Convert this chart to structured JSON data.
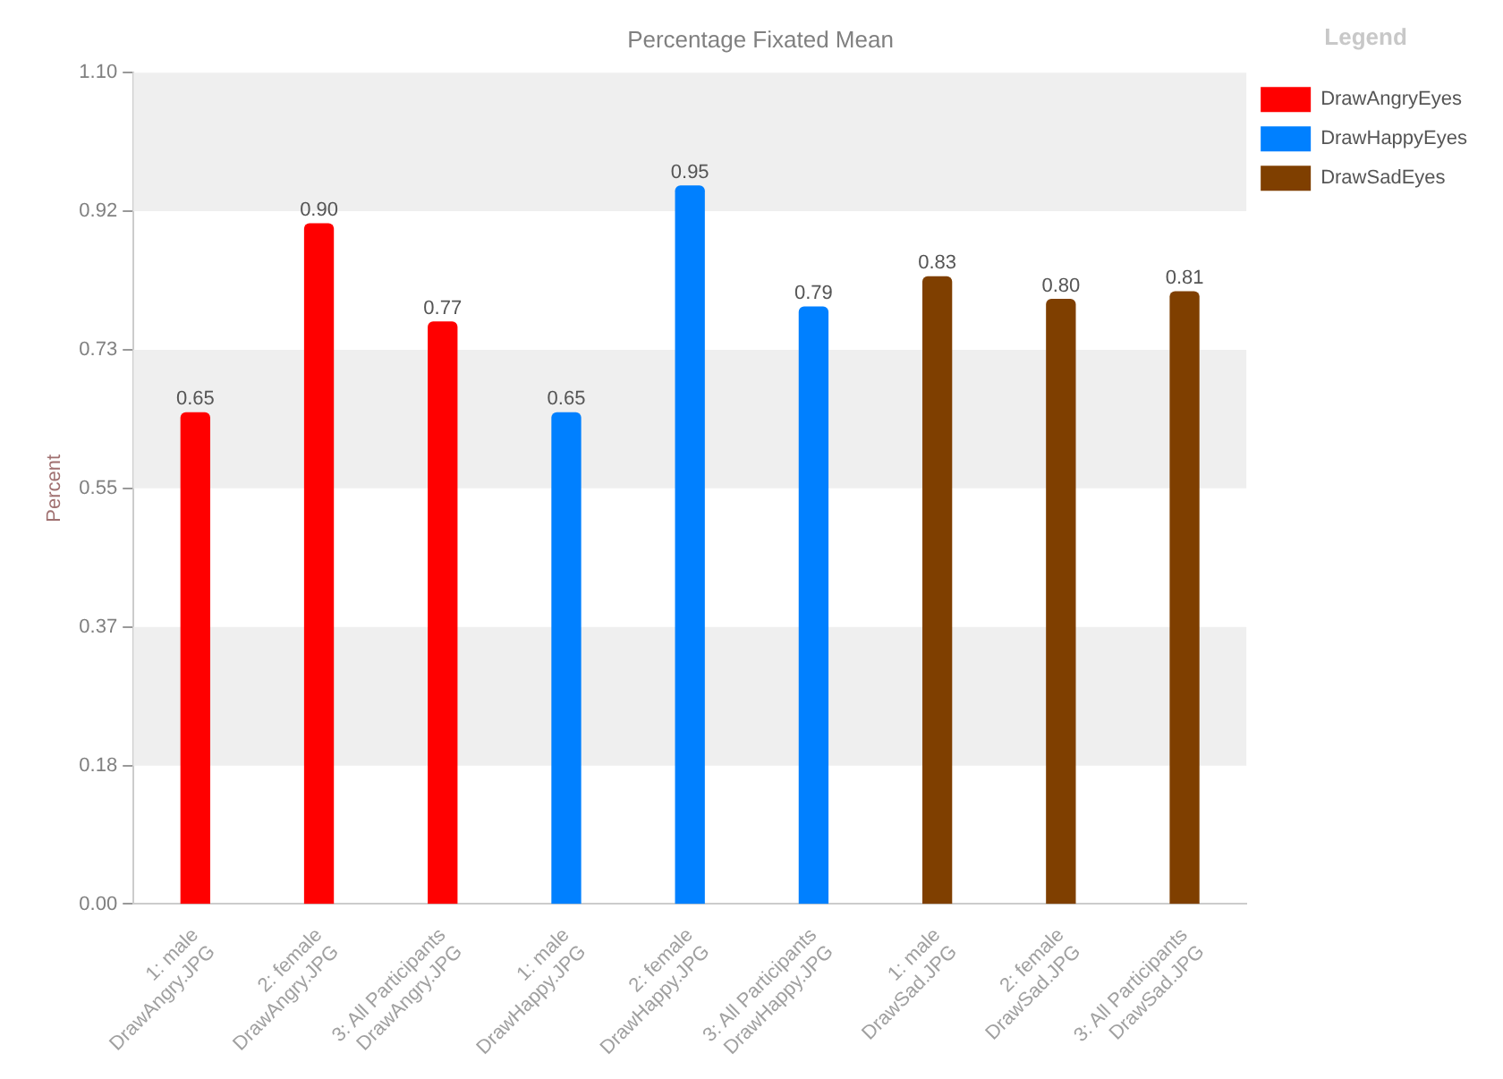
{
  "chart_data": {
    "type": "bar",
    "title": "Percentage Fixated Mean",
    "ylabel": "Percent",
    "legend_title": "Legend",
    "categories": [
      "1: male\nDrawAngry.JPG",
      "2: female\nDrawAngry.JPG",
      "3: All Participants\nDrawAngry.JPG",
      "1: male\nDrawHappy.JPG",
      "2: female\nDrawHappy.JPG",
      "3: All Participants\nDrawHappy.JPG",
      "1: male\nDrawSad.JPG",
      "2: female\nDrawSad.JPG",
      "3: All Participants\nDrawSad.JPG"
    ],
    "series": [
      {
        "name": "DrawAngryEyes",
        "color": "#ff0000",
        "values": [
          0.65,
          0.9,
          0.77,
          null,
          null,
          null,
          null,
          null,
          null
        ],
        "value_labels": [
          "0.65",
          "0.90",
          "0.77",
          null,
          null,
          null,
          null,
          null,
          null
        ]
      },
      {
        "name": "DrawHappyEyes",
        "color": "#0080ff",
        "values": [
          null,
          null,
          null,
          0.65,
          0.95,
          0.79,
          null,
          null,
          null
        ],
        "value_labels": [
          null,
          null,
          null,
          "0.65",
          "0.95",
          "0.79",
          null,
          null,
          null
        ]
      },
      {
        "name": "DrawSadEyes",
        "color": "#7f3f00",
        "values": [
          null,
          null,
          null,
          null,
          null,
          null,
          0.83,
          0.8,
          0.81
        ],
        "value_labels": [
          null,
          null,
          null,
          null,
          null,
          null,
          "0.83",
          "0.80",
          "0.81"
        ]
      }
    ],
    "ylim": [
      0,
      1.1
    ],
    "yticks": [
      {
        "value": 0,
        "label": "0.00"
      },
      {
        "value": 0.1833,
        "label": "0.18"
      },
      {
        "value": 0.3667,
        "label": "0.37"
      },
      {
        "value": 0.55,
        "label": "0.55"
      },
      {
        "value": 0.7333,
        "label": "0.73"
      },
      {
        "value": 0.9167,
        "label": "0.92"
      },
      {
        "value": 1.1,
        "label": "1.10"
      }
    ],
    "bands": [
      {
        "axis": "y",
        "from": 0.1833,
        "to": 0.3667,
        "color": "#efefef"
      },
      {
        "axis": "y",
        "from": 0.55,
        "to": 0.7333,
        "color": "#efefef"
      },
      {
        "axis": "y",
        "from": 0.9167,
        "to": 1.1,
        "color": "#efefef"
      }
    ],
    "grid": false,
    "legend": "top right"
  }
}
